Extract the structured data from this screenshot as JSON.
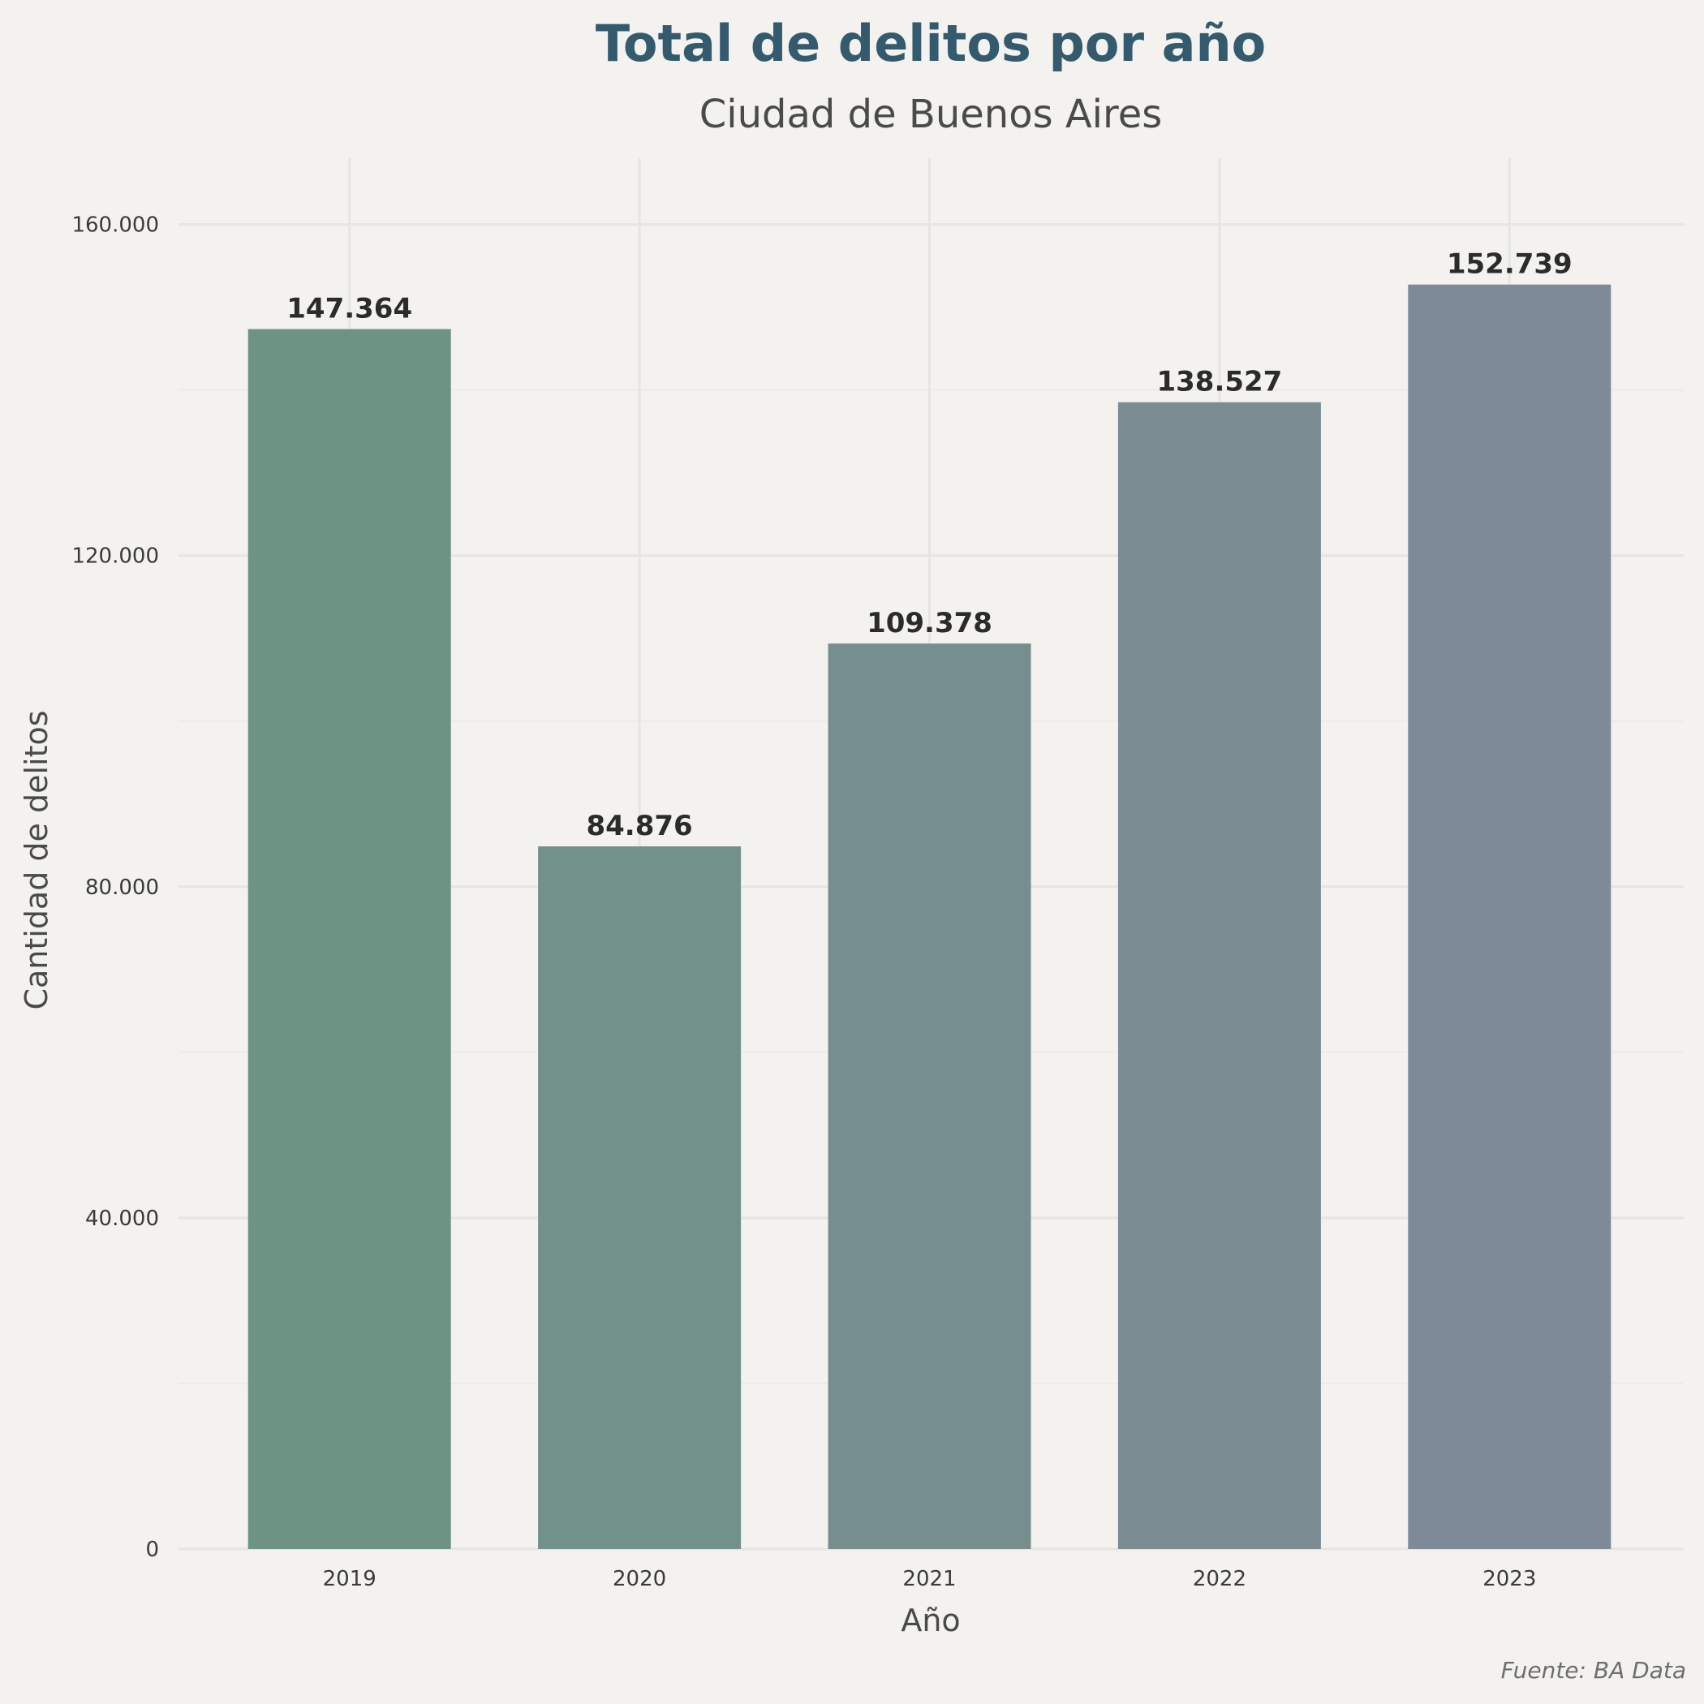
{
  "chart_data": {
    "type": "bar",
    "title": "Total de delitos por año",
    "subtitle": "Ciudad de Buenos Aires",
    "xlabel": "Año",
    "ylabel": "Cantidad de delitos",
    "caption": "Fuente: BA Data",
    "categories": [
      "2019",
      "2020",
      "2021",
      "2022",
      "2023"
    ],
    "values": [
      147364,
      84876,
      109378,
      138527,
      152739
    ],
    "value_labels": [
      "147.364",
      "84.876",
      "109.378",
      "138.527",
      "152.739"
    ],
    "bar_colors": [
      "#6d9384",
      "#72918a",
      "#778e8f",
      "#7b8c93",
      "#7f8a98"
    ],
    "ylim": [
      0,
      168000
    ],
    "yticks": [
      0,
      40000,
      80000,
      120000,
      160000
    ],
    "ytick_labels": [
      "0",
      "40.000",
      "80.000",
      "120.000",
      "160.000"
    ],
    "grid": true,
    "legend": "none"
  }
}
